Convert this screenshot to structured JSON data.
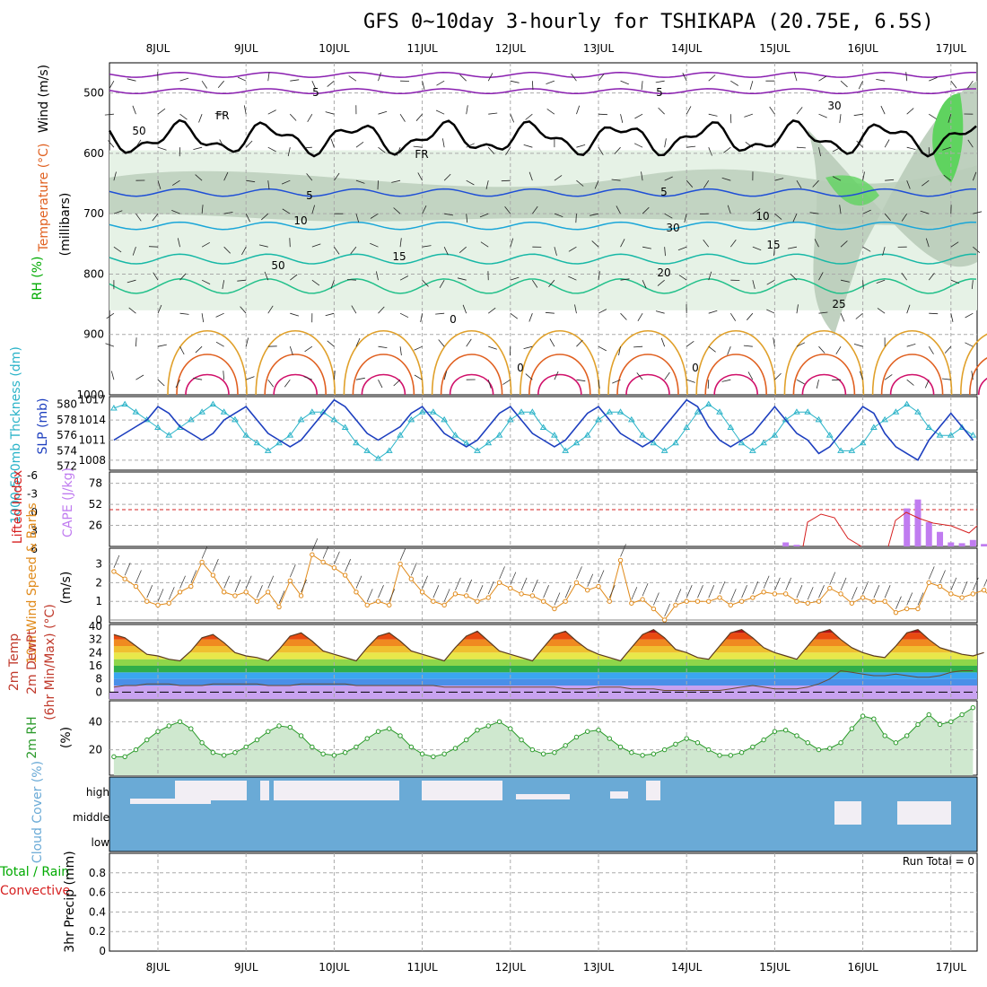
{
  "title": "GFS 0~10day 3-hourly for TSHIKAPA (20.75E, 6.5S)",
  "days": [
    "8JUL",
    "9JUL",
    "10JUL",
    "11JUL",
    "12JUL",
    "13JUL",
    "14JUL",
    "15JUL",
    "16JUL",
    "17JUL"
  ],
  "colors": {
    "rh_light": "#e6f2e6",
    "rh_mid": "#b9ccb9",
    "rh_high": "#5fd35f",
    "temp_purple": "#8a1fb0",
    "temp_blue": "#1f4fd6",
    "temp_cyan": "#1aa6d8",
    "temp_teal": "#17b8a6",
    "temp_green": "#22c08a",
    "temp_orange": "#e0a02a",
    "temp_red": "#e06020",
    "temp_magenta": "#d0106a",
    "slp": "#1d3fbf",
    "thickness": "#2ab3c8",
    "cape": "#c07cf0",
    "lifted": "#d62020",
    "wind10": "#e08a1a",
    "rh2m": "#2a9a2a",
    "cloud": "#6aaad6",
    "cloud_clear": "#f2eef4"
  },
  "panels": {
    "upper": {
      "ylabel_wind": "Wind (m/s)",
      "ylabel_temp": "Temperature (°C)",
      "ylabel_rh": "RH (%)",
      "ylabel_units": "(millibars)",
      "pressure_ticks": [
        "500",
        "600",
        "700",
        "800",
        "900",
        "1000"
      ],
      "contour_labels": [
        "5",
        "5",
        "FR",
        "FR",
        "5",
        "5",
        "10",
        "10",
        "15",
        "15",
        "20",
        "25",
        "30",
        "50",
        "30",
        "50",
        "0",
        "0",
        "0"
      ]
    },
    "slp": {
      "ylabel_thk": "1000-500mb Thckness (dm)",
      "ylabel_slp": "SLP (mb)",
      "thk_ticks": [
        "580",
        "578",
        "576",
        "574",
        "572"
      ],
      "slp_ticks": [
        "1017",
        "1014",
        "1011",
        "1008"
      ]
    },
    "cape": {
      "ylabel_li": "Lifted Index",
      "ylabel_cape": "CAPE (J/kg)",
      "li_ticks": [
        "-6",
        "-3",
        "0",
        "3",
        "6"
      ],
      "cape_ticks": [
        "78",
        "52",
        "26"
      ]
    },
    "wind10": {
      "ylabel": "10m Wind Speed & Barbs",
      "ylabel_units": "(m/s)",
      "ticks": [
        "3",
        "2",
        "1",
        "0"
      ]
    },
    "temp2m": {
      "ylabel": "2m Temp 2m DewPt (6hr Min/Max) (°C)",
      "ticks": [
        "40",
        "32",
        "24",
        "16",
        "8",
        "0"
      ]
    },
    "rh2m": {
      "ylabel": "2m RH",
      "ylabel_units": "(%)",
      "ticks": [
        "40",
        "20"
      ]
    },
    "cloud": {
      "ylabel": "Cloud Cover (%)",
      "levels": [
        "high",
        "middle",
        "low"
      ]
    },
    "precip": {
      "ylabel_left": "Total / Rain",
      "ylabel_left2": "Convective",
      "ylabel": "3hr Precip (mm)",
      "ticks": [
        "0.8",
        "0.6",
        "0.4",
        "0.2",
        "0"
      ],
      "run_total": "Run Total = 0"
    }
  },
  "chart_data": [
    {
      "type": "line",
      "title": "SLP (mb)",
      "x_start": "7JUL 12Z",
      "step_hours": 3,
      "values": [
        1011,
        1012,
        1013,
        1014,
        1016,
        1015,
        1013,
        1012,
        1011,
        1012,
        1014,
        1015,
        1016,
        1014,
        1012,
        1011,
        1010,
        1011,
        1013,
        1015,
        1017,
        1016,
        1014,
        1012,
        1011,
        1012,
        1013,
        1015,
        1016,
        1014,
        1012,
        1011,
        1010,
        1011,
        1013,
        1015,
        1016,
        1014,
        1012,
        1011,
        1010,
        1011,
        1013,
        1015,
        1016,
        1014,
        1012,
        1011,
        1010,
        1011,
        1013,
        1015,
        1017,
        1016,
        1013,
        1011,
        1010,
        1011,
        1012,
        1014,
        1016,
        1014,
        1012,
        1011,
        1009,
        1010,
        1012,
        1014,
        1016,
        1015,
        1012,
        1010,
        1009,
        1008,
        1011,
        1013,
        1015,
        1013,
        1011
      ]
    },
    {
      "type": "line",
      "title": "1000-500mb Thickness (dm)",
      "x_start": "7JUL 12Z",
      "step_hours": 3,
      "values": [
        579.5,
        580,
        579,
        578,
        577,
        576,
        577,
        578,
        579,
        580,
        579,
        578,
        576,
        575,
        574,
        575,
        576,
        578,
        579,
        579,
        578,
        577,
        575,
        574,
        573,
        574,
        576,
        578,
        579,
        579,
        578,
        576,
        575,
        574,
        575,
        576,
        578,
        579,
        579,
        577,
        576,
        574,
        575,
        576,
        578,
        579,
        579,
        578,
        576,
        575,
        574,
        575,
        577,
        579,
        580,
        579,
        577,
        575,
        574,
        575,
        576,
        578,
        579,
        579,
        578,
        576,
        574,
        574,
        575,
        577,
        578,
        579,
        580,
        579,
        577,
        576,
        576,
        577,
        576
      ]
    },
    {
      "type": "bar",
      "title": "CAPE (J/kg)",
      "x_start": "7JUL 12Z",
      "step_hours": 3,
      "values": [
        0,
        0,
        0,
        0,
        0,
        0,
        0,
        0,
        0,
        0,
        0,
        0,
        0,
        0,
        0,
        0,
        0,
        0,
        0,
        0,
        0,
        0,
        0,
        0,
        0,
        0,
        0,
        0,
        0,
        0,
        0,
        0,
        0,
        0,
        0,
        0,
        0,
        0,
        0,
        0,
        0,
        0,
        0,
        0,
        0,
        0,
        0,
        0,
        0,
        0,
        0,
        0,
        0,
        0,
        0,
        0,
        0,
        0,
        0,
        0,
        0,
        5,
        2,
        0,
        0,
        0,
        0,
        0,
        0,
        0,
        0,
        0,
        47,
        58,
        30,
        18,
        5,
        4,
        8,
        3,
        0
      ]
    },
    {
      "type": "line",
      "title": "10m Wind Speed (m/s)",
      "x_start": "7JUL 12Z",
      "step_hours": 3,
      "values": [
        2.6,
        2.2,
        1.8,
        1.0,
        0.8,
        0.9,
        1.5,
        1.8,
        3.1,
        2.4,
        1.5,
        1.3,
        1.5,
        1.0,
        1.5,
        0.7,
        2.1,
        1.3,
        3.5,
        3.1,
        2.8,
        2.4,
        1.5,
        0.8,
        1.0,
        0.8,
        3.0,
        2.2,
        1.5,
        1.0,
        0.8,
        1.4,
        1.3,
        1.0,
        1.2,
        2.0,
        1.7,
        1.4,
        1.3,
        1.0,
        0.6,
        1.0,
        2.0,
        1.6,
        1.8,
        1.0,
        3.2,
        0.9,
        1.1,
        0.6,
        0.0,
        0.8,
        1.0,
        1.0,
        1.0,
        1.2,
        0.8,
        1.0,
        1.2,
        1.5,
        1.4,
        1.4,
        1.0,
        0.9,
        1.0,
        1.7,
        1.4,
        0.9,
        1.2,
        1.0,
        1.0,
        0.4,
        0.6,
        0.6,
        2.0,
        1.8,
        1.4,
        1.2,
        1.4,
        1.6,
        1.0
      ]
    },
    {
      "type": "area",
      "title": "2m Temp (°C)",
      "x_start": "7JUL 12Z",
      "step_hours": 3,
      "values": [
        35,
        33,
        28,
        23,
        22,
        20,
        19,
        25,
        33,
        35,
        30,
        24,
        22,
        21,
        19,
        26,
        34,
        36,
        31,
        25,
        23,
        21,
        19,
        27,
        34,
        36,
        31,
        25,
        23,
        21,
        19,
        27,
        34,
        37,
        31,
        25,
        23,
        21,
        19,
        27,
        35,
        37,
        31,
        26,
        23,
        21,
        19,
        27,
        35,
        38,
        33,
        26,
        24,
        21,
        20,
        28,
        36,
        38,
        33,
        27,
        24,
        22,
        20,
        28,
        36,
        38,
        32,
        27,
        24,
        22,
        21,
        28,
        36,
        38,
        32,
        27,
        25,
        23,
        22,
        24
      ]
    },
    {
      "type": "line",
      "title": "2m DewPt (°C)",
      "x_start": "7JUL 12Z",
      "step_hours": 3,
      "values": [
        3,
        4,
        4,
        5,
        5,
        5,
        4,
        4,
        4,
        5,
        5,
        5,
        5,
        5,
        4,
        4,
        4,
        5,
        5,
        5,
        5,
        5,
        4,
        4,
        4,
        4,
        4,
        4,
        4,
        4,
        3,
        3,
        3,
        3,
        3,
        3,
        3,
        3,
        3,
        3,
        3,
        2,
        2,
        2,
        3,
        3,
        3,
        2,
        2,
        2,
        1,
        1,
        1,
        1,
        1,
        1,
        2,
        3,
        4,
        3,
        2,
        2,
        2,
        3,
        5,
        8,
        13,
        12,
        11,
        10,
        10,
        11,
        10,
        9,
        9,
        10,
        12,
        13,
        13
      ]
    },
    {
      "type": "area",
      "title": "2m RH (%)",
      "x_start": "7JUL 12Z",
      "step_hours": 3,
      "values": [
        15,
        15,
        20,
        27,
        33,
        37,
        40,
        35,
        25,
        18,
        16,
        18,
        22,
        27,
        33,
        37,
        36,
        30,
        22,
        17,
        16,
        18,
        22,
        28,
        33,
        35,
        30,
        22,
        17,
        15,
        17,
        21,
        27,
        34,
        37,
        40,
        35,
        27,
        20,
        17,
        18,
        23,
        29,
        33,
        34,
        28,
        22,
        18,
        16,
        17,
        20,
        24,
        28,
        25,
        20,
        16,
        16,
        18,
        22,
        27,
        33,
        34,
        30,
        25,
        20,
        21,
        25,
        35,
        44,
        42,
        30,
        25,
        30,
        38,
        45,
        38,
        40,
        45,
        50
      ]
    }
  ]
}
